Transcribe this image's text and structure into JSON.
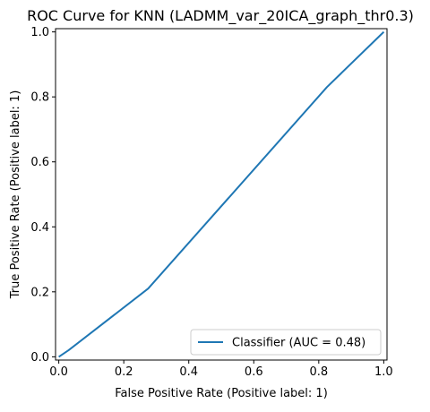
{
  "chart_data": {
    "type": "line",
    "title": "ROC Curve for KNN (LADMM_var_20ICA_graph_thr0.3)",
    "xlabel": "False Positive Rate (Positive label: 1)",
    "ylabel": "True Positive Rate (Positive label: 1)",
    "xlim": [
      -0.01,
      1.01
    ],
    "ylim": [
      -0.01,
      1.01
    ],
    "x_ticks": [
      "0.0",
      "0.2",
      "0.4",
      "0.6",
      "0.8",
      "1.0"
    ],
    "y_ticks": [
      "0.0",
      "0.2",
      "0.4",
      "0.6",
      "0.8",
      "1.0"
    ],
    "grid": false,
    "legend_position": "lower-right",
    "series": [
      {
        "name": "Classifier (AUC = 0.48)",
        "color": "#1f77b4",
        "x": [
          0.0,
          0.03,
          0.275,
          0.825,
          1.0
        ],
        "y": [
          0.0,
          0.02,
          0.21,
          0.83,
          1.0
        ]
      }
    ]
  }
}
